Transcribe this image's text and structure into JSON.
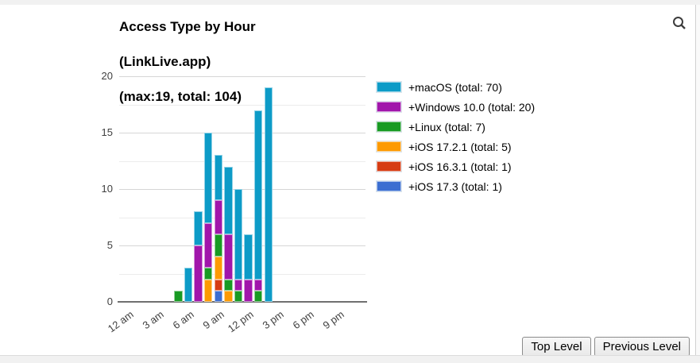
{
  "page": {
    "search_icon": "magnifier",
    "buttons": {
      "top_level": "Top Level",
      "previous_level": "Previous Level"
    }
  },
  "title": {
    "line1": "Access Type by Hour",
    "line2": "(LinkLive.app)",
    "line3": "(max:19, total: 104)"
  },
  "legend": {
    "position": "right",
    "items": [
      {
        "label": "+macOS (total: 70)",
        "color": "#0d9bc7"
      },
      {
        "label": "+Windows 10.0 (total: 20)",
        "color": "#a116ab"
      },
      {
        "label": "+Linux (total: 7)",
        "color": "#189a23"
      },
      {
        "label": "+iOS 17.2.1 (total: 5)",
        "color": "#fd9a02"
      },
      {
        "label": "+iOS 16.3.1 (total: 1)",
        "color": "#d63c13"
      },
      {
        "label": "+iOS 17.3 (total: 1)",
        "color": "#3b6ed1"
      }
    ]
  },
  "chart_data": {
    "type": "bar",
    "stacked": true,
    "title": "Access Type by Hour (LinkLive.app) (max:19, total: 104)",
    "max": 19,
    "total": 104,
    "grid": true,
    "ylim": [
      0,
      20
    ],
    "y_ticks": [
      0,
      5,
      10,
      15,
      20
    ],
    "y_minor_ticks": [
      2.5,
      7.5,
      12.5,
      17.5
    ],
    "x_axis_ticks": [
      {
        "label": "12 am",
        "hour": 0
      },
      {
        "label": "3 am",
        "hour": 3
      },
      {
        "label": "6 am",
        "hour": 6
      },
      {
        "label": "9 am",
        "hour": 9
      },
      {
        "label": "12 pm",
        "hour": 12
      },
      {
        "label": "3 pm",
        "hour": 15
      },
      {
        "label": "6 pm",
        "hour": 18
      },
      {
        "label": "9 pm",
        "hour": 21
      }
    ],
    "categories": [
      "5 am",
      "6 am",
      "7 am",
      "8 am",
      "9 am",
      "10 am",
      "11 am",
      "12 pm",
      "1 pm",
      "2 pm"
    ],
    "bar_start_hours": [
      5,
      6,
      7,
      8,
      9,
      10,
      11,
      12,
      13,
      14
    ],
    "bar_totals": [
      1,
      3,
      8,
      15,
      13,
      12,
      10,
      6,
      17,
      19
    ],
    "stack_order": "bottom_to_top",
    "series": [
      {
        "name": "iOS 17.3",
        "total": 1,
        "color": "#3b6ed1",
        "values": [
          0,
          0,
          0,
          0,
          1,
          0,
          0,
          0,
          0,
          0
        ]
      },
      {
        "name": "iOS 16.3.1",
        "total": 1,
        "color": "#d63c13",
        "values": [
          0,
          0,
          0,
          0,
          1,
          0,
          0,
          0,
          0,
          0
        ]
      },
      {
        "name": "iOS 17.2.1",
        "total": 5,
        "color": "#fd9a02",
        "values": [
          0,
          0,
          0,
          2,
          2,
          1,
          0,
          0,
          0,
          0
        ]
      },
      {
        "name": "Linux",
        "total": 7,
        "color": "#189a23",
        "values": [
          1,
          0,
          0,
          1,
          2,
          1,
          1,
          0,
          1,
          0
        ]
      },
      {
        "name": "Windows 10.0",
        "total": 20,
        "color": "#a116ab",
        "values": [
          0,
          0,
          5,
          4,
          3,
          4,
          1,
          2,
          1,
          0
        ]
      },
      {
        "name": "macOS",
        "total": 70,
        "color": "#0d9bc7",
        "values": [
          0,
          3,
          3,
          8,
          4,
          6,
          8,
          4,
          15,
          19
        ]
      }
    ]
  }
}
